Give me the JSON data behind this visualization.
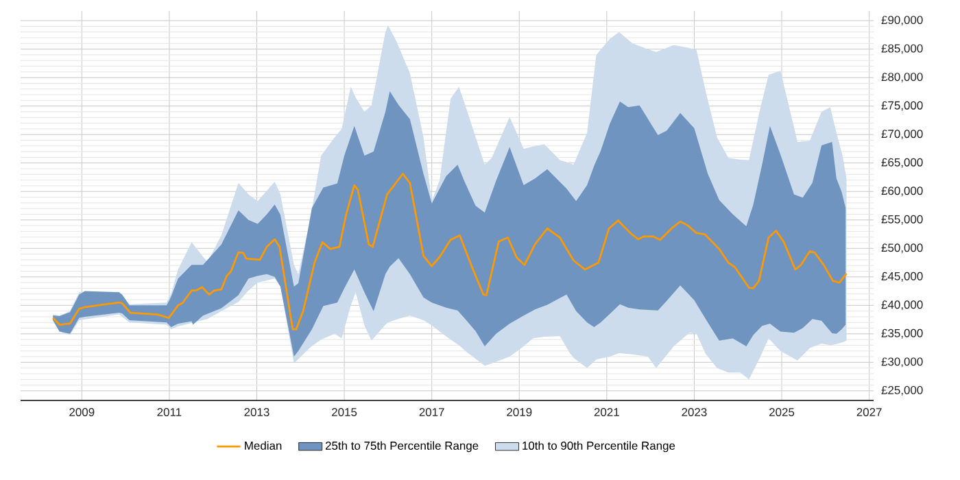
{
  "chart_data": {
    "type": "line",
    "xlim": [
      2007.6,
      2027.1
    ],
    "ylim": [
      23300,
      91700
    ],
    "xticks": [
      2009,
      2011,
      2013,
      2015,
      2017,
      2019,
      2021,
      2023,
      2025,
      2027
    ],
    "yticks": [
      {
        "value": 25000,
        "label": "£25,000"
      },
      {
        "value": 30000,
        "label": "£30,000"
      },
      {
        "value": 35000,
        "label": "£35,000"
      },
      {
        "value": 40000,
        "label": "£40,000"
      },
      {
        "value": 45000,
        "label": "£45,000"
      },
      {
        "value": 50000,
        "label": "£50,000"
      },
      {
        "value": 55000,
        "label": "£55,000"
      },
      {
        "value": 60000,
        "label": "£60,000"
      },
      {
        "value": 65000,
        "label": "£65,000"
      },
      {
        "value": 70000,
        "label": "£70,000"
      },
      {
        "value": 75000,
        "label": "£75,000"
      },
      {
        "value": 80000,
        "label": "£80,000"
      },
      {
        "value": 85000,
        "label": "£85,000"
      },
      {
        "value": 90000,
        "label": "£90,000"
      }
    ],
    "grid": true,
    "legend": "bottom",
    "series": [
      {
        "name": "Median",
        "color": "#ff9900",
        "x": [
          2008.34,
          2008.49,
          2008.73,
          2008.94,
          2009.07,
          2009.85,
          2009.92,
          2010.11,
          2010.73,
          2010.99,
          2011.2,
          2011.3,
          2011.51,
          2011.61,
          2011.75,
          2011.91,
          2012.03,
          2012.19,
          2012.31,
          2012.41,
          2012.58,
          2012.69,
          2012.76,
          2013.07,
          2013.23,
          2013.41,
          2013.52,
          2013.82,
          2013.9,
          2014.06,
          2014.32,
          2014.5,
          2014.68,
          2014.89,
          2015.04,
          2015.23,
          2015.31,
          2015.56,
          2015.65,
          2015.98,
          2016.14,
          2016.34,
          2016.5,
          2016.81,
          2017.0,
          2017.18,
          2017.43,
          2017.64,
          2017.9,
          2018.18,
          2018.25,
          2018.53,
          2018.74,
          2018.94,
          2019.12,
          2019.36,
          2019.64,
          2019.93,
          2020.24,
          2020.5,
          2020.81,
          2021.05,
          2021.26,
          2021.54,
          2021.72,
          2021.85,
          2022.06,
          2022.22,
          2022.48,
          2022.68,
          2022.84,
          2023.05,
          2023.24,
          2023.57,
          2023.78,
          2023.93,
          2024.25,
          2024.35,
          2024.48,
          2024.7,
          2024.87,
          2025.05,
          2025.31,
          2025.44,
          2025.64,
          2025.75,
          2025.96,
          2026.17,
          2026.32,
          2026.48
        ],
        "values": [
          37800,
          36600,
          36800,
          39400,
          39700,
          40500,
          40400,
          38700,
          38400,
          37800,
          40000,
          40400,
          42600,
          42600,
          43200,
          41900,
          42600,
          42800,
          45100,
          46000,
          49300,
          49200,
          48200,
          48000,
          50300,
          51600,
          50300,
          35800,
          35800,
          39000,
          47500,
          51100,
          49900,
          50300,
          55900,
          61100,
          60300,
          50700,
          50300,
          59500,
          61100,
          63100,
          61500,
          48700,
          46900,
          48500,
          51500,
          52300,
          47100,
          41900,
          41800,
          51200,
          51900,
          48400,
          47100,
          50700,
          53500,
          51900,
          47900,
          46300,
          47500,
          53500,
          54900,
          52700,
          51600,
          52100,
          52100,
          51500,
          53500,
          54700,
          54100,
          52700,
          52500,
          49900,
          47500,
          46700,
          43100,
          43000,
          44300,
          51900,
          53100,
          51100,
          46300,
          47100,
          49500,
          49300,
          47100,
          44300,
          44000,
          45600
        ]
      },
      {
        "name": "25th to 75th Percentile Range",
        "color": "#6f94bf",
        "x": [
          2008.34,
          2008.49,
          2008.73,
          2008.94,
          2009.07,
          2009.85,
          2009.92,
          2010.09,
          2010.94,
          2011.04,
          2011.2,
          2011.51,
          2011.54,
          2011.77,
          2012.19,
          2012.58,
          2012.81,
          2013.02,
          2013.23,
          2013.41,
          2013.54,
          2013.85,
          2013.95,
          2014.26,
          2014.52,
          2014.84,
          2015.0,
          2015.23,
          2015.46,
          2015.67,
          2015.94,
          2016.04,
          2016.24,
          2016.5,
          2016.81,
          2017.0,
          2017.33,
          2017.59,
          2017.74,
          2018.0,
          2018.21,
          2018.47,
          2018.78,
          2019.1,
          2019.36,
          2019.64,
          2020.08,
          2020.3,
          2020.55,
          2020.71,
          2020.86,
          2021.07,
          2021.3,
          2021.49,
          2021.75,
          2022.17,
          2022.37,
          2022.68,
          2023.0,
          2023.31,
          2023.57,
          2023.88,
          2024.19,
          2024.35,
          2024.55,
          2024.73,
          2024.97,
          2025.28,
          2025.48,
          2025.7,
          2025.91,
          2026.15,
          2026.25,
          2026.37,
          2026.46
        ],
        "values": [
          null,
          null,
          null,
          null,
          null,
          null,
          null,
          null,
          null,
          null,
          null,
          null,
          null,
          null,
          null,
          null,
          null,
          null,
          null,
          null,
          null,
          null,
          null,
          null,
          null,
          null,
          null,
          null,
          null,
          null,
          null,
          null,
          null,
          null,
          null,
          null,
          null,
          null,
          null,
          null,
          null,
          null,
          null,
          null,
          null,
          null,
          null,
          null,
          null,
          null,
          null,
          null,
          null,
          null,
          null,
          null,
          null,
          null,
          null,
          null,
          null,
          null,
          null,
          null,
          null,
          null,
          null,
          null,
          null,
          null,
          null,
          null,
          null,
          null,
          null
        ],
        "lower": [
          37400,
          35400,
          35000,
          37800,
          38000,
          38700,
          38600,
          37400,
          37000,
          36200,
          36800,
          37200,
          36600,
          38200,
          39500,
          41800,
          44700,
          45200,
          45500,
          45000,
          43300,
          31000,
          32000,
          35800,
          39900,
          40500,
          43000,
          46300,
          42300,
          39000,
          45500,
          46800,
          48300,
          45500,
          41400,
          40500,
          39600,
          39100,
          37800,
          35500,
          32800,
          35000,
          36800,
          38200,
          39300,
          40100,
          41900,
          39000,
          37000,
          36200,
          37000,
          38500,
          40200,
          39600,
          39300,
          39100,
          40800,
          43500,
          40900,
          37000,
          33800,
          34200,
          32800,
          34800,
          36400,
          36800,
          35400,
          35200,
          36000,
          37600,
          37300,
          35100,
          35000,
          35800,
          36600
        ],
        "upper": [
          38200,
          38100,
          38800,
          41900,
          42500,
          42300,
          41900,
          40000,
          40000,
          41500,
          44700,
          47100,
          47100,
          47100,
          50700,
          56700,
          55000,
          54300,
          56000,
          57700,
          55900,
          43300,
          43900,
          57100,
          60700,
          61400,
          66300,
          71500,
          66300,
          67000,
          74000,
          77600,
          75200,
          72700,
          63100,
          57900,
          62700,
          64700,
          61900,
          57500,
          56300,
          61900,
          67800,
          61100,
          62300,
          63900,
          60500,
          58300,
          61100,
          64500,
          67100,
          71900,
          75800,
          74800,
          75100,
          69900,
          70700,
          73800,
          71100,
          63100,
          58500,
          56000,
          53900,
          57700,
          64700,
          71500,
          66500,
          59500,
          58900,
          61500,
          68100,
          68700,
          62300,
          59900,
          57100
        ]
      },
      {
        "name": "10th to 90th Percentile Range",
        "color": "#ccdcec",
        "x": [
          2008.34,
          2008.49,
          2008.73,
          2008.94,
          2009.85,
          2010.09,
          2010.94,
          2011.04,
          2011.2,
          2011.51,
          2011.87,
          2012.19,
          2012.58,
          2012.81,
          2013.02,
          2013.41,
          2013.54,
          2013.85,
          2013.95,
          2014.22,
          2014.47,
          2014.78,
          2014.94,
          2015.15,
          2015.26,
          2015.46,
          2015.62,
          2015.94,
          2016.0,
          2016.19,
          2016.5,
          2016.81,
          2017.0,
          2017.18,
          2017.43,
          2017.62,
          2017.8,
          2018.21,
          2018.37,
          2018.78,
          2019.1,
          2019.31,
          2019.57,
          2019.93,
          2020.14,
          2020.24,
          2020.55,
          2020.76,
          2021.07,
          2021.28,
          2021.59,
          2021.94,
          2022.13,
          2022.53,
          2022.89,
          2023.05,
          2023.26,
          2023.52,
          2023.78,
          2024.05,
          2024.25,
          2024.5,
          2024.7,
          2024.97,
          2025.36,
          2025.64,
          2025.91,
          2026.11,
          2026.25,
          2026.39,
          2026.48
        ],
        "values": [
          null,
          null,
          null,
          null,
          null,
          null,
          null,
          null,
          null,
          null,
          null,
          null,
          null,
          null,
          null,
          null,
          null,
          null,
          null,
          null,
          null,
          null,
          null,
          null,
          null,
          null,
          null,
          null,
          null,
          null,
          null,
          null,
          null,
          null,
          null,
          null,
          null,
          null,
          null,
          null,
          null,
          null,
          null,
          null,
          null,
          null,
          null,
          null,
          null,
          null,
          null,
          null,
          null,
          null,
          null,
          null,
          null,
          null,
          null,
          null,
          null,
          null,
          null,
          null,
          null,
          null,
          null,
          null,
          null,
          null,
          null
        ],
        "lower": [
          37300,
          35400,
          34800,
          37400,
          38400,
          37000,
          36600,
          35800,
          36300,
          36900,
          37600,
          39000,
          40600,
          42600,
          44000,
          44700,
          43300,
          29800,
          30600,
          32600,
          34000,
          35000,
          34200,
          40000,
          42300,
          36500,
          33800,
          36600,
          37000,
          37500,
          38200,
          37400,
          36500,
          35400,
          34000,
          33000,
          31800,
          29400,
          29800,
          31000,
          32800,
          34200,
          34500,
          34600,
          31800,
          30800,
          29000,
          30500,
          31000,
          31600,
          31400,
          31000,
          29000,
          32800,
          35200,
          35000,
          31500,
          29000,
          28200,
          28200,
          27000,
          30800,
          34200,
          32000,
          30300,
          32500,
          33300,
          33000,
          33200,
          33500,
          33800
        ],
        "upper": [
          38400,
          38200,
          39000,
          42300,
          42400,
          40200,
          40500,
          42000,
          46300,
          51100,
          47600,
          52300,
          61500,
          59500,
          58300,
          61700,
          59500,
          47100,
          45500,
          55100,
          66300,
          69500,
          71000,
          78400,
          76500,
          74000,
          75100,
          88000,
          89200,
          86400,
          80800,
          69500,
          58300,
          62000,
          76300,
          78400,
          74300,
          64700,
          65900,
          73100,
          67500,
          67900,
          68300,
          65500,
          65000,
          64700,
          70300,
          84000,
          86800,
          88000,
          86000,
          85000,
          84500,
          85700,
          85200,
          84900,
          77600,
          69500,
          65900,
          65600,
          65500,
          74300,
          80500,
          81200,
          68700,
          68900,
          74000,
          74800,
          70300,
          66300,
          62300
        ]
      }
    ]
  }
}
